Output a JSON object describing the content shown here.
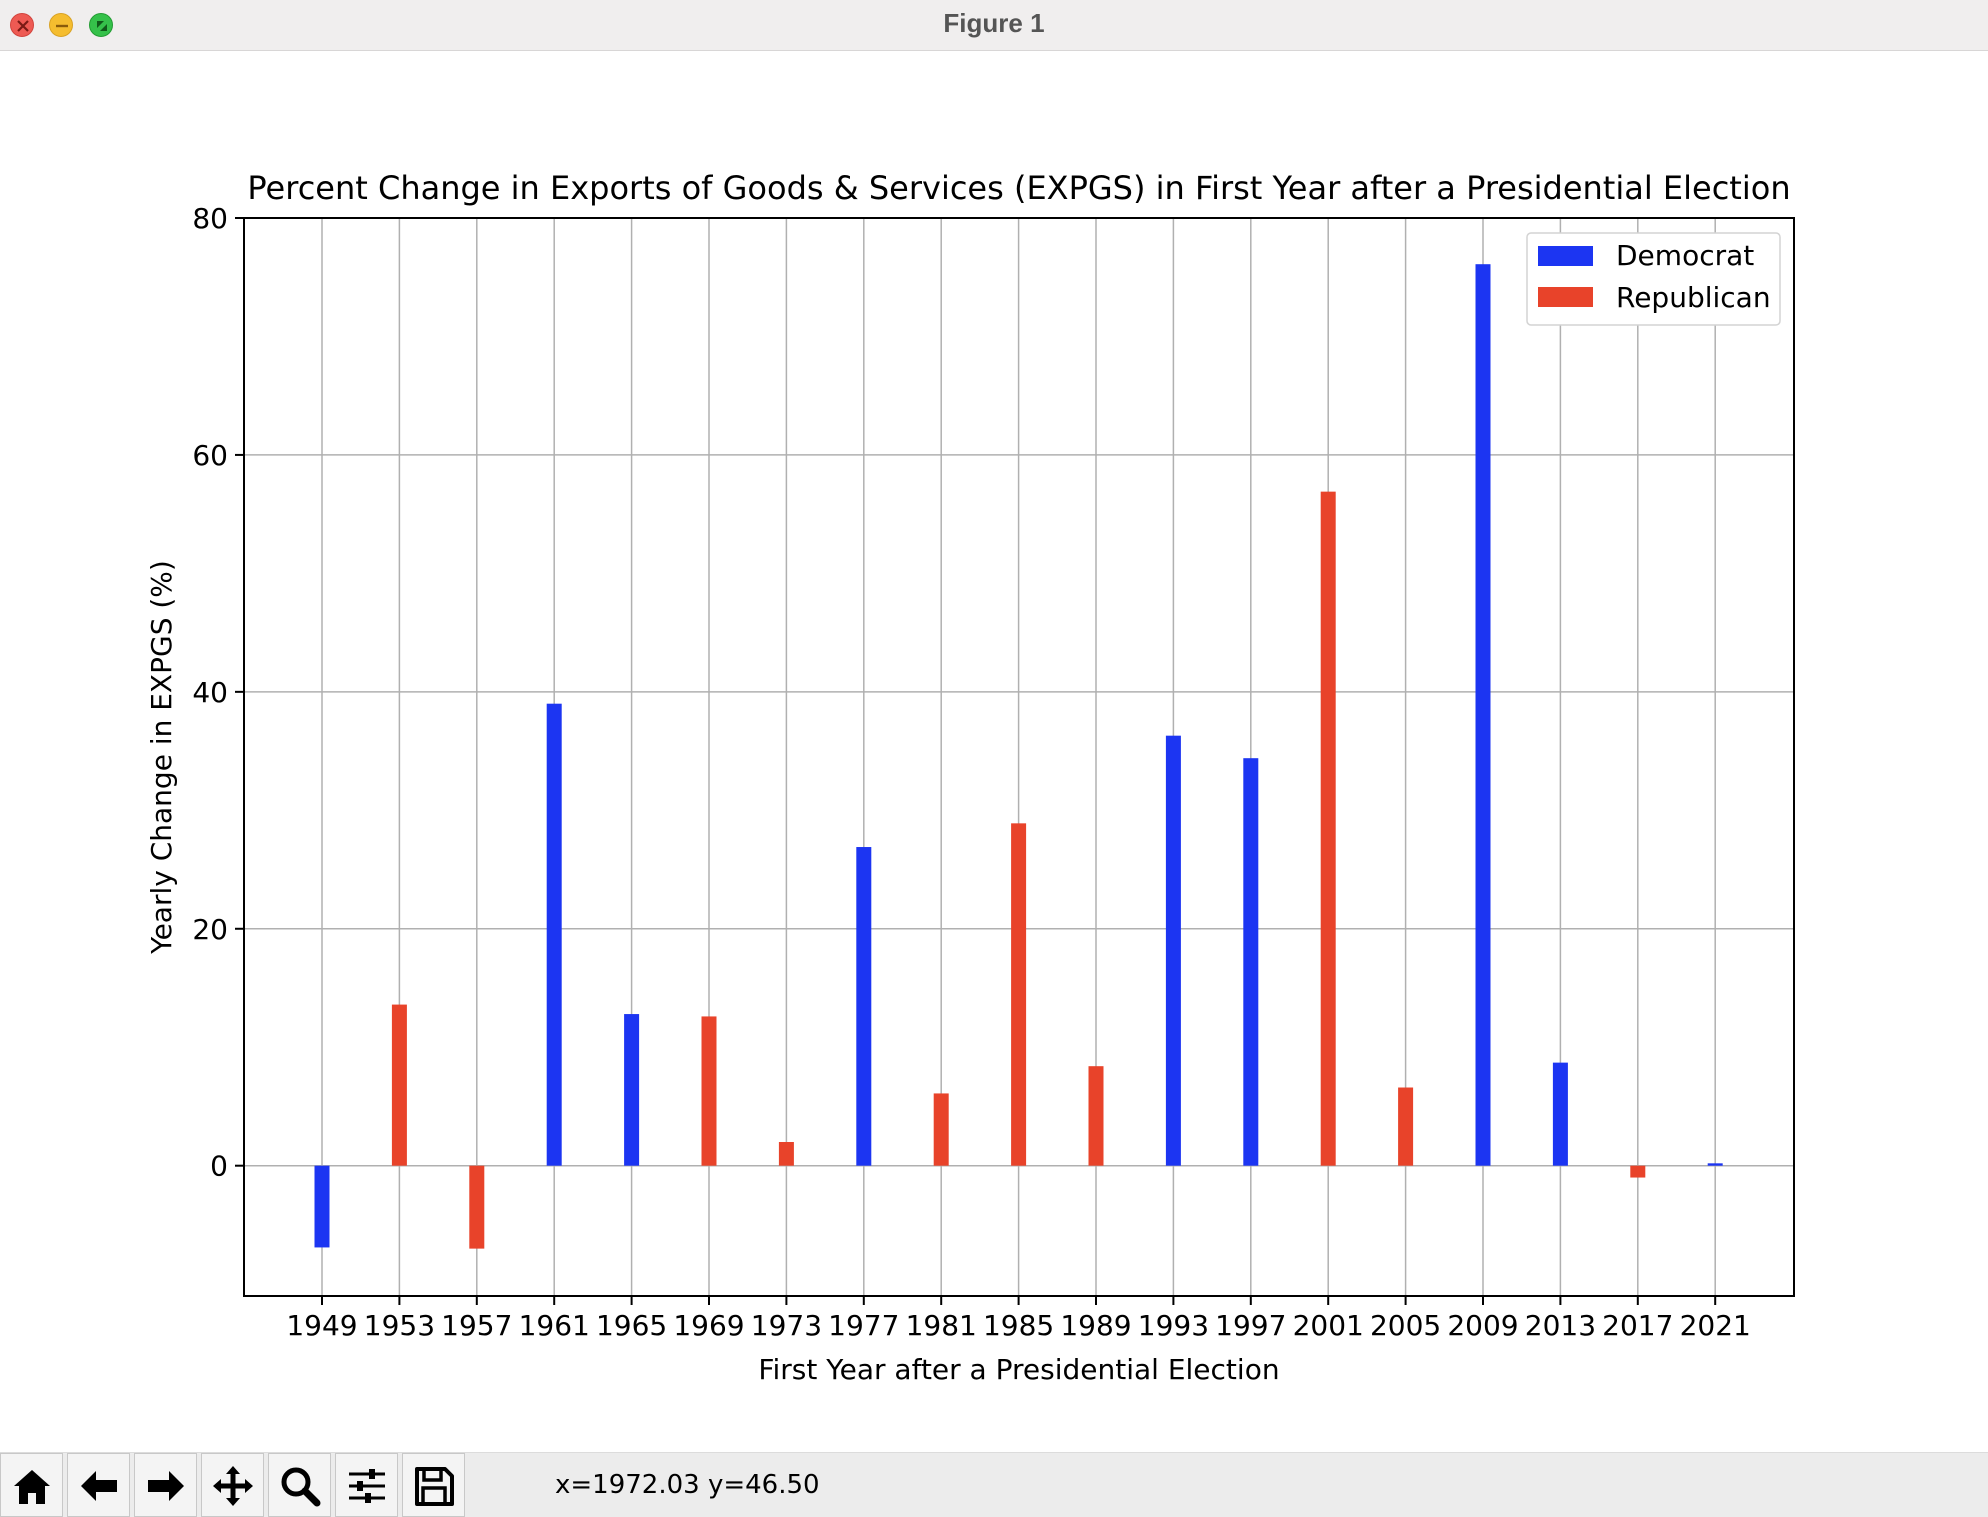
{
  "window": {
    "title": "Figure 1"
  },
  "toolbar": {
    "buttons": [
      {
        "name": "home-button",
        "icon": "home-icon"
      },
      {
        "name": "back-button",
        "icon": "arrow-left-icon"
      },
      {
        "name": "forward-button",
        "icon": "arrow-right-icon"
      },
      {
        "name": "pan-button",
        "icon": "move-icon"
      },
      {
        "name": "zoom-button",
        "icon": "magnifier-icon"
      },
      {
        "name": "configure-subplots-button",
        "icon": "sliders-icon"
      },
      {
        "name": "save-button",
        "icon": "floppy-disk-icon"
      }
    ],
    "coordinates": "x=1972.03 y=46.50"
  },
  "chart_data": {
    "type": "bar",
    "title": "Percent Change in Exports of Goods & Services (EXPGS) in First Year after a Presidential Election",
    "xlabel": "First Year after a Presidential Election",
    "ylabel": "Yearly Change in EXPGS (%)",
    "categories": [
      "1949",
      "1953",
      "1957",
      "1961",
      "1965",
      "1969",
      "1973",
      "1977",
      "1981",
      "1985",
      "1989",
      "1993",
      "1997",
      "2001",
      "2005",
      "2009",
      "2013",
      "2017",
      "2021"
    ],
    "values": [
      -6.9,
      13.6,
      -7.0,
      39.0,
      12.8,
      12.6,
      2.0,
      26.9,
      6.1,
      28.9,
      8.4,
      36.3,
      34.4,
      56.9,
      6.6,
      76.1,
      8.7,
      -1.0,
      0.2
    ],
    "party": [
      "Democrat",
      "Republican",
      "Republican",
      "Democrat",
      "Democrat",
      "Republican",
      "Republican",
      "Democrat",
      "Republican",
      "Republican",
      "Republican",
      "Democrat",
      "Democrat",
      "Republican",
      "Republican",
      "Democrat",
      "Democrat",
      "Republican",
      "Democrat"
    ],
    "legend": [
      {
        "name": "Democrat",
        "color": "#1c35f2"
      },
      {
        "name": "Republican",
        "color": "#e8432a"
      }
    ],
    "legend_position": "top-right",
    "ylim": [
      -11,
      80
    ],
    "yticks": [
      0,
      20,
      40,
      60,
      80
    ],
    "grid": true
  }
}
